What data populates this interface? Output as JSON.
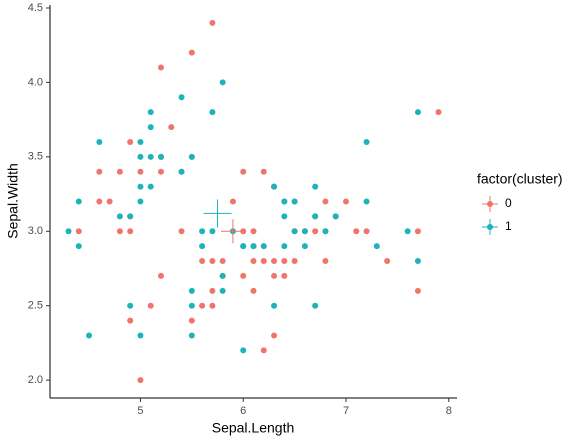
{
  "chart_data": {
    "type": "scatter",
    "x_label": "Sepal.Length",
    "y_label": "Sepal.Width",
    "xlim": [
      4.12,
      8.08
    ],
    "ylim": [
      1.88,
      4.52
    ],
    "xticks": [
      5,
      6,
      7,
      8
    ],
    "yticks": [
      {
        "value": 2,
        "label": "2.0"
      },
      2.5,
      {
        "value": 3,
        "label": "3.0"
      },
      3.5,
      {
        "value": 4,
        "label": "4.0"
      },
      4.5
    ],
    "legend_title": "factor(cluster)",
    "legend": "right",
    "series": [
      {
        "name": "0",
        "color": "#f0746a",
        "center": [
          5.9,
          3.0
        ],
        "x": [
          5.7,
          5.5,
          5.2,
          5.3,
          4.9,
          4.4,
          4.6,
          4.6,
          4.7,
          4.8,
          4.8,
          4.9,
          4.9,
          5.0,
          5.2,
          5.2,
          5.4,
          5.5,
          5.4,
          5.0,
          4.9,
          5.1,
          5.5,
          5.6,
          5.7,
          5.8,
          6.2,
          7.9,
          7.7,
          7.7,
          7.4,
          7.2,
          7.1,
          6.9,
          6.8,
          6.8,
          6.7,
          6.7,
          6.5,
          6.4,
          6.3,
          6.2,
          6.0,
          5.9,
          6.0,
          6.1,
          6.5,
          6.8,
          5.7,
          5.7,
          5.8,
          6.0,
          6.0,
          6.1,
          6.1,
          6.2,
          6.3,
          6.3,
          6.4,
          6.5,
          6.1,
          6.3,
          6.4,
          5.6,
          5.2,
          6.6,
          7.0
        ],
        "y": [
          4.4,
          4.2,
          4.1,
          3.7,
          3.6,
          3.0,
          3.2,
          3.4,
          3.2,
          3.4,
          3.0,
          3.0,
          3.1,
          3.4,
          3.4,
          3.5,
          3.4,
          3.5,
          3.0,
          2.0,
          2.4,
          2.5,
          2.4,
          2.5,
          2.5,
          2.7,
          2.2,
          3.8,
          3.0,
          2.6,
          2.8,
          3.0,
          3.0,
          3.1,
          3.2,
          3.0,
          3.1,
          3.0,
          3.2,
          3.2,
          3.3,
          3.4,
          3.4,
          3.2,
          3.0,
          3.0,
          3.0,
          2.8,
          2.8,
          2.6,
          2.8,
          2.9,
          2.7,
          2.8,
          2.6,
          2.8,
          2.8,
          2.7,
          2.8,
          2.8,
          2.9,
          2.3,
          2.7,
          2.8,
          2.7,
          3.0,
          3.2
        ]
      },
      {
        "name": "1",
        "color": "#1cb4b9",
        "center": [
          5.75,
          3.12
        ],
        "x": [
          4.3,
          4.4,
          4.4,
          4.5,
          4.6,
          4.8,
          4.9,
          5.0,
          5.0,
          5.0,
          5.0,
          5.1,
          5.1,
          5.1,
          5.1,
          5.2,
          5.4,
          5.4,
          5.5,
          5.5,
          5.5,
          5.5,
          5.6,
          5.6,
          5.7,
          5.8,
          5.8,
          5.8,
          6.0,
          6.0,
          6.1,
          6.3,
          6.3,
          6.4,
          6.4,
          6.5,
          6.5,
          6.6,
          6.7,
          6.7,
          6.7,
          6.8,
          7.2,
          7.2,
          7.3,
          7.6,
          7.7,
          7.7,
          6.9,
          6.2,
          6.4,
          6.6,
          5.9,
          5.7,
          5.0,
          4.9
        ],
        "y": [
          3.0,
          3.2,
          2.9,
          2.3,
          3.6,
          3.1,
          2.5,
          3.6,
          3.5,
          3.3,
          2.3,
          3.8,
          3.7,
          3.5,
          3.3,
          3.5,
          3.9,
          3.4,
          3.5,
          2.6,
          2.5,
          2.3,
          3.0,
          2.9,
          3.8,
          4.0,
          2.7,
          2.6,
          2.2,
          2.9,
          2.9,
          3.3,
          2.5,
          3.2,
          3.1,
          3.2,
          3.0,
          3.0,
          3.3,
          3.1,
          2.5,
          3.0,
          3.6,
          3.2,
          2.9,
          3.0,
          3.8,
          2.8,
          3.1,
          2.9,
          2.9,
          2.9,
          3.0,
          3.0,
          3.2,
          3.1
        ]
      }
    ]
  }
}
